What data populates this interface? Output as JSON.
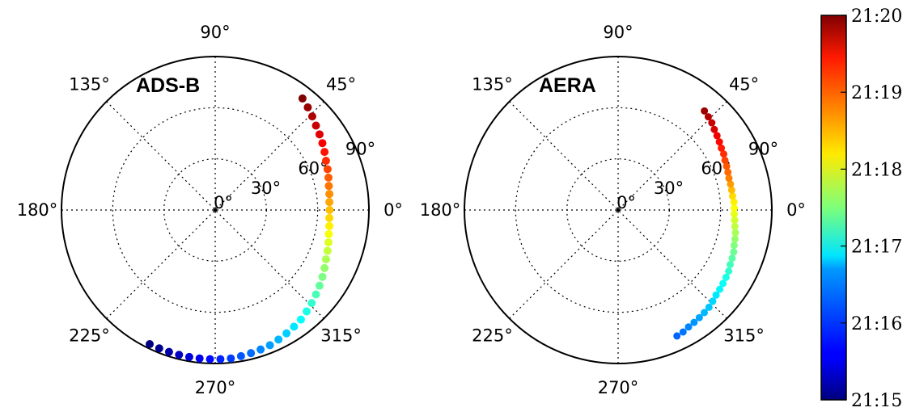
{
  "chart_data": [
    {
      "type": "scatter",
      "projection": "polar",
      "title": "ADS-B",
      "theta_unit": "degrees",
      "angle_labels": [
        "0°",
        "45°",
        "90°",
        "135°",
        "180°",
        "225°",
        "270°",
        "315°"
      ],
      "radial_labels": [
        "0°",
        "30°",
        "60°",
        "90°"
      ],
      "rlim": [
        0,
        90
      ],
      "grid": true,
      "color_by": "time",
      "points": {
        "azimuth_deg": [
          52,
          48,
          44,
          40,
          36,
          32,
          28,
          24,
          20,
          16,
          12,
          8,
          4,
          0,
          -4,
          -8,
          -12,
          -16,
          -20,
          -24,
          -28,
          -32,
          -36,
          -40,
          -44,
          -48,
          -52,
          -56,
          -60,
          -64,
          -68,
          -72,
          -76,
          -80,
          -84,
          -88,
          -92,
          -96,
          -100,
          -104,
          -108,
          -112,
          -116
        ],
        "zenith_deg": [
          83,
          81,
          79,
          77,
          75.5,
          74,
          72.5,
          71,
          70,
          69,
          68,
          67.5,
          67,
          67,
          67,
          67.5,
          68,
          69,
          70,
          71,
          72.5,
          74,
          75.5,
          77,
          78.5,
          80,
          81.5,
          82.5,
          83.5,
          84.5,
          85.5,
          86,
          86.5,
          87,
          87.5,
          87.5,
          87.5,
          87.5,
          87.5,
          87.5,
          87.5,
          87.5,
          87.5
        ],
        "time_min": [
          5,
          4.88,
          4.76,
          4.64,
          4.52,
          4.4,
          4.28,
          4.16,
          4.04,
          3.92,
          3.8,
          3.68,
          3.56,
          3.44,
          3.32,
          3.2,
          3.08,
          2.96,
          2.84,
          2.72,
          2.6,
          2.48,
          2.36,
          2.24,
          2.12,
          2.0,
          1.88,
          1.76,
          1.64,
          1.52,
          1.4,
          1.28,
          1.16,
          1.04,
          0.92,
          0.8,
          0.68,
          0.56,
          0.44,
          0.32,
          0.2,
          0.08,
          0.0
        ]
      }
    },
    {
      "type": "scatter",
      "projection": "polar",
      "title": "AERA",
      "theta_unit": "degrees",
      "angle_labels": [
        "0°",
        "45°",
        "90°",
        "135°",
        "180°",
        "225°",
        "270°",
        "315°"
      ],
      "radial_labels": [
        "0°",
        "30°",
        "60°",
        "90°"
      ],
      "rlim": [
        0,
        90
      ],
      "grid": true,
      "color_by": "time",
      "points": {
        "azimuth_deg": [
          49,
          46,
          43,
          40,
          37,
          34,
          31,
          28,
          25,
          22,
          19,
          16,
          13,
          10,
          7,
          4,
          1,
          -2,
          -5,
          -8,
          -11,
          -14,
          -17,
          -20,
          -23,
          -26,
          -29,
          -32,
          -35,
          -38,
          -41,
          -44,
          -47,
          -50,
          -53,
          -56,
          -59,
          -62,
          -65
        ],
        "zenith_deg": [
          77,
          76,
          75,
          73.5,
          72.5,
          71.5,
          70.5,
          70,
          69,
          68.5,
          68,
          67.5,
          67.5,
          67.5,
          67.5,
          68,
          68,
          68,
          68.5,
          69,
          70,
          70.5,
          71,
          72,
          72.5,
          73,
          74,
          74.5,
          75,
          75.5,
          76,
          77,
          78,
          78.5,
          79,
          79.5,
          80,
          81,
          81.5
        ],
        "time_min": [
          4.85,
          4.75,
          4.65,
          4.55,
          4.45,
          4.35,
          4.25,
          4.15,
          4.05,
          3.95,
          3.85,
          3.75,
          3.6,
          3.45,
          3.3,
          3.2,
          3.1,
          3.0,
          2.9,
          2.8,
          2.7,
          2.6,
          2.5,
          2.4,
          2.3,
          2.2,
          2.1,
          2.0,
          1.92,
          1.84,
          1.76,
          1.68,
          1.6,
          1.52,
          1.44,
          1.36,
          1.28,
          1.2,
          1.12
        ]
      }
    }
  ],
  "colorbar": {
    "colormap": "jet",
    "tick_labels": [
      "21:15",
      "21:16",
      "21:17",
      "21:18",
      "21:19",
      "21:20"
    ],
    "range_min": [
      0,
      5
    ]
  }
}
